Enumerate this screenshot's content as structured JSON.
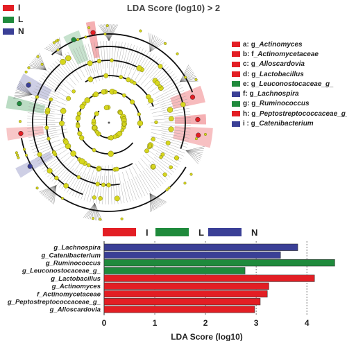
{
  "cladogram": {
    "title": "LDA Score (log10) > 2"
  },
  "groups": [
    {
      "name": "I",
      "color": "#e31e24"
    },
    {
      "name": "L",
      "color": "#1f8a3c"
    },
    {
      "name": "N",
      "color": "#3a3f96"
    }
  ],
  "taxa": [
    {
      "code": "a:",
      "prefix": "g_",
      "name": "Actinomyces",
      "group": "I"
    },
    {
      "code": "b:",
      "prefix": "f_",
      "name": "Actinomycetaceae",
      "group": "I"
    },
    {
      "code": "c:",
      "prefix": "g_",
      "name": "Alloscardovia",
      "group": "I"
    },
    {
      "code": "d:",
      "prefix": "g_",
      "name": "Lactobacillus",
      "group": "I"
    },
    {
      "code": "e:",
      "prefix": "g_",
      "name": "Leuconostocaceae_g_",
      "group": "L"
    },
    {
      "code": "f:",
      "prefix": "g_",
      "name": "Lachnospira",
      "group": "N"
    },
    {
      "code": "g:",
      "prefix": "g_",
      "name": "Ruminococcus",
      "group": "L"
    },
    {
      "code": "h:",
      "prefix": "g_",
      "name": "Peptostreptococcaceae_g_",
      "group": "I"
    },
    {
      "code": "i :",
      "prefix": "g_",
      "name": "Catenibacterium",
      "group": "N"
    }
  ],
  "colors": {
    "node": "#d6d61e",
    "node_stroke": "#7a7a10",
    "ring": "#111111",
    "edge": "#9a9a9a",
    "dashed": "#555555"
  },
  "chart_data": {
    "type": "bar",
    "orientation": "horizontal",
    "categories": [
      "g_Lachnospira",
      "g_Catenibacterium",
      "g_Ruminococcus",
      "g_Leuconostocaceae_g_",
      "g_Lactobacillus",
      "g_Actinomyces",
      "f_Actinomycetaceae",
      "g_Peptostreptococcaceae_g_",
      "g_Alloscardovia"
    ],
    "values": [
      3.82,
      3.48,
      4.55,
      2.78,
      4.15,
      3.25,
      3.22,
      3.08,
      2.97
    ],
    "groups": [
      "N",
      "N",
      "L",
      "L",
      "I",
      "I",
      "I",
      "I",
      "I"
    ],
    "xlabel": "LDA Score (log10)",
    "xlim": [
      0,
      4.6
    ],
    "xticks": [
      0,
      1,
      2,
      3,
      4
    ],
    "legend": [
      "I",
      "L",
      "N"
    ],
    "legend_position": "top",
    "grid": "vertical dashed"
  }
}
